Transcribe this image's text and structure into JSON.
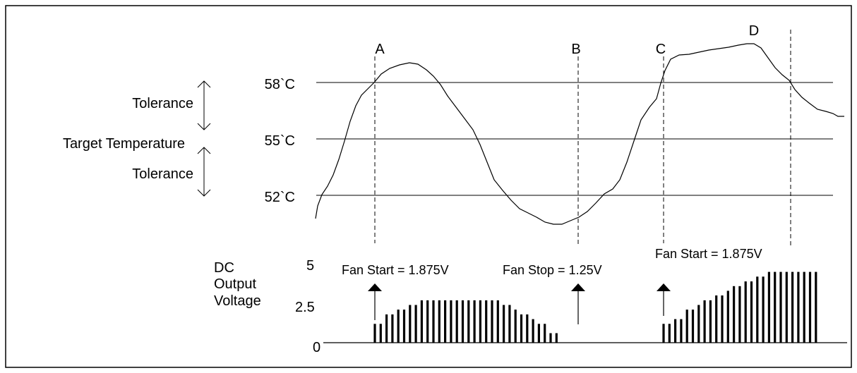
{
  "colors": {
    "stroke": "#000000",
    "background": "#ffffff"
  },
  "temperature_levels": [
    {
      "label": "58`C",
      "value": 58
    },
    {
      "label": "55`C",
      "value": 55
    },
    {
      "label": "52`C",
      "value": 52
    }
  ],
  "left_labels": {
    "tolerance_upper": "Tolerance",
    "target": "Target Temperature",
    "tolerance_lower": "Tolerance"
  },
  "markers": [
    {
      "label": "A"
    },
    {
      "label": "B"
    },
    {
      "label": "C"
    },
    {
      "label": "D"
    }
  ],
  "voltage_axis": {
    "title_lines": [
      "DC",
      "Output",
      "Voltage"
    ],
    "ticks": [
      {
        "label": "5",
        "value": 5
      },
      {
        "label": "2.5",
        "value": 2.5
      },
      {
        "label": "0",
        "value": 0
      }
    ]
  },
  "annotations": {
    "fan_start_1": "Fan Start = 1.875V",
    "fan_stop": "Fan Stop = 1.25V",
    "fan_start_2": "Fan Start = 1.875V"
  },
  "pulse_groups": [
    {
      "values": [
        1.25,
        1.25,
        1.875,
        1.875,
        2.19,
        2.19,
        2.5,
        2.5,
        2.81,
        2.81,
        2.81,
        2.81,
        2.81,
        2.81,
        2.81,
        2.81,
        2.81,
        2.81,
        2.81,
        2.81,
        2.81,
        2.81,
        2.5,
        2.5,
        2.19,
        1.875,
        1.875,
        1.56,
        1.25,
        1.25,
        0.63,
        0.63
      ]
    },
    {
      "values": [
        1.25,
        1.25,
        1.56,
        1.56,
        2.19,
        2.19,
        2.5,
        2.81,
        2.81,
        3.13,
        3.13,
        3.44,
        3.75,
        3.75,
        4.06,
        4.06,
        4.38,
        4.38,
        4.69,
        4.69,
        4.69,
        4.69,
        4.69,
        4.69,
        4.69,
        4.69,
        4.69
      ]
    }
  ]
}
